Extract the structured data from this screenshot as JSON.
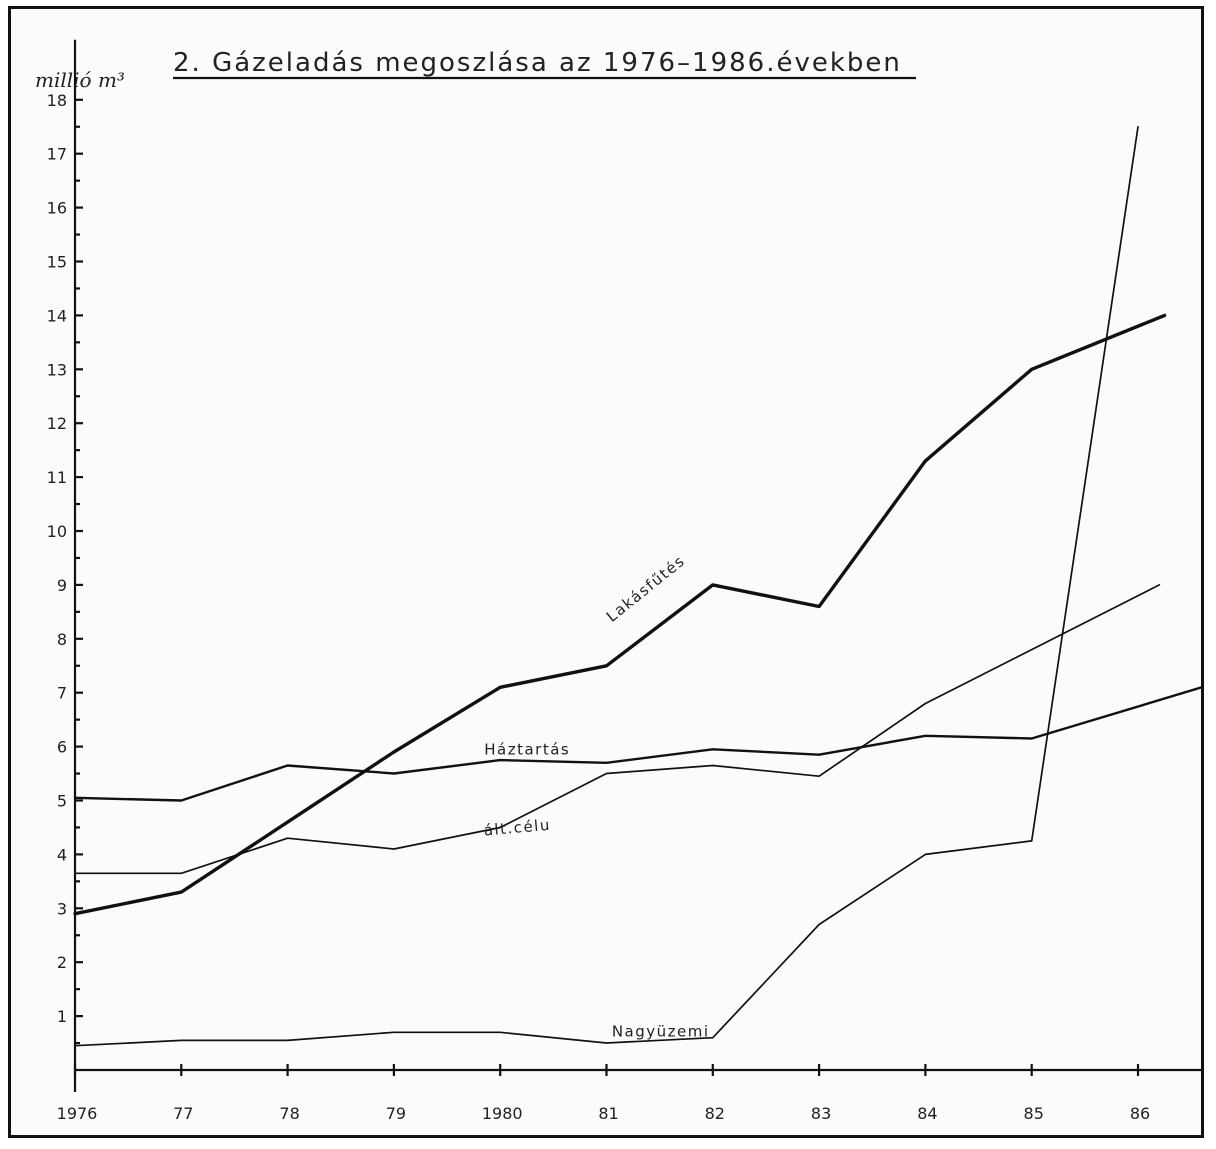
{
  "chart_data": {
    "type": "line",
    "title": "2. Gázeladás megoszlása az 1976–1986.években",
    "ylabel": "millió m³",
    "xlabel": "",
    "x": [
      1976,
      1977,
      1978,
      1979,
      1980,
      1981,
      1982,
      1983,
      1984,
      1985,
      1986
    ],
    "x_tick_labels": [
      "1976",
      "77",
      "78",
      "79",
      "1980",
      "81",
      "82",
      "83",
      "84",
      "85",
      "86"
    ],
    "y_ticks": [
      1,
      2,
      3,
      4,
      5,
      6,
      7,
      8,
      9,
      10,
      11,
      12,
      13,
      14,
      15,
      16,
      17,
      18
    ],
    "ylim": [
      0,
      18
    ],
    "grid": false,
    "series": [
      {
        "name": "Lakásfűtés",
        "color": "#111111",
        "x": [
          1976,
          1977,
          1978,
          1979,
          1980,
          1981,
          1982,
          1983,
          1984,
          1985,
          1986.25
        ],
        "values": [
          2.9,
          3.3,
          4.6,
          5.9,
          7.1,
          7.5,
          9.0,
          8.6,
          11.3,
          13.0,
          14.0
        ]
      },
      {
        "name": "Háztartás",
        "color": "#111111",
        "x": [
          1976,
          1977,
          1978,
          1979,
          1980,
          1981,
          1982,
          1983,
          1984,
          1985,
          1986.6
        ],
        "values": [
          5.05,
          5.0,
          5.65,
          5.5,
          5.75,
          5.7,
          5.95,
          5.85,
          6.2,
          6.15,
          7.1
        ]
      },
      {
        "name": "ált.célu",
        "color": "#111111",
        "x": [
          1976,
          1977,
          1978,
          1979,
          1980,
          1981,
          1982,
          1983,
          1984,
          1985,
          1986.2
        ],
        "values": [
          3.65,
          3.65,
          4.3,
          4.1,
          4.5,
          5.5,
          5.65,
          5.45,
          6.8,
          7.8,
          9.0
        ]
      },
      {
        "name": "Nagyüzemi",
        "color": "#111111",
        "x": [
          1976,
          1977,
          1978,
          1979,
          1980,
          1981,
          1982,
          1983,
          1984,
          1985,
          1986
        ],
        "values": [
          0.45,
          0.55,
          0.55,
          0.7,
          0.7,
          0.5,
          0.6,
          2.7,
          4.0,
          4.25,
          17.5
        ]
      }
    ]
  }
}
